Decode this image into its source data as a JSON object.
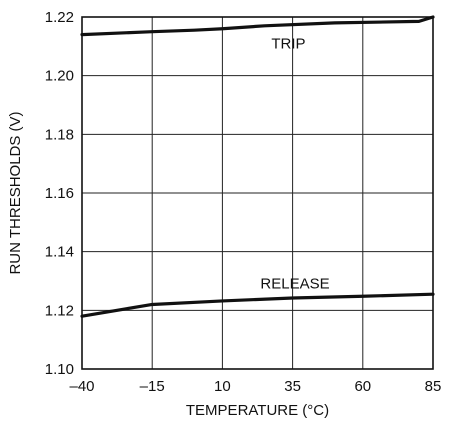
{
  "chart_data": {
    "type": "line",
    "title": "",
    "xlabel": "TEMPERATURE (°C)",
    "ylabel": "RUN THRESHOLDS (V)",
    "xlim": [
      -40,
      85
    ],
    "ylim": [
      1.1,
      1.22
    ],
    "x_ticks": [
      "–40",
      "–15",
      "10",
      "35",
      "60",
      "85"
    ],
    "x_tick_values": [
      -40,
      -15,
      10,
      35,
      60,
      85
    ],
    "y_ticks": [
      "1.10",
      "1.12",
      "1.14",
      "1.16",
      "1.18",
      "1.20",
      "1.22"
    ],
    "y_tick_values": [
      1.1,
      1.12,
      1.14,
      1.16,
      1.18,
      1.2,
      1.22
    ],
    "grid": true,
    "legend": "none",
    "series": [
      {
        "name": "TRIP",
        "x": [
          -40,
          -15,
          0,
          10,
          25,
          50,
          80,
          85
        ],
        "y": [
          1.214,
          1.215,
          1.2155,
          1.216,
          1.217,
          1.218,
          1.2185,
          1.22
        ]
      },
      {
        "name": "RELEASE",
        "x": [
          -40,
          -15,
          10,
          35,
          60,
          85
        ],
        "y": [
          1.118,
          1.122,
          1.1232,
          1.1242,
          1.1248,
          1.1255
        ]
      }
    ]
  }
}
